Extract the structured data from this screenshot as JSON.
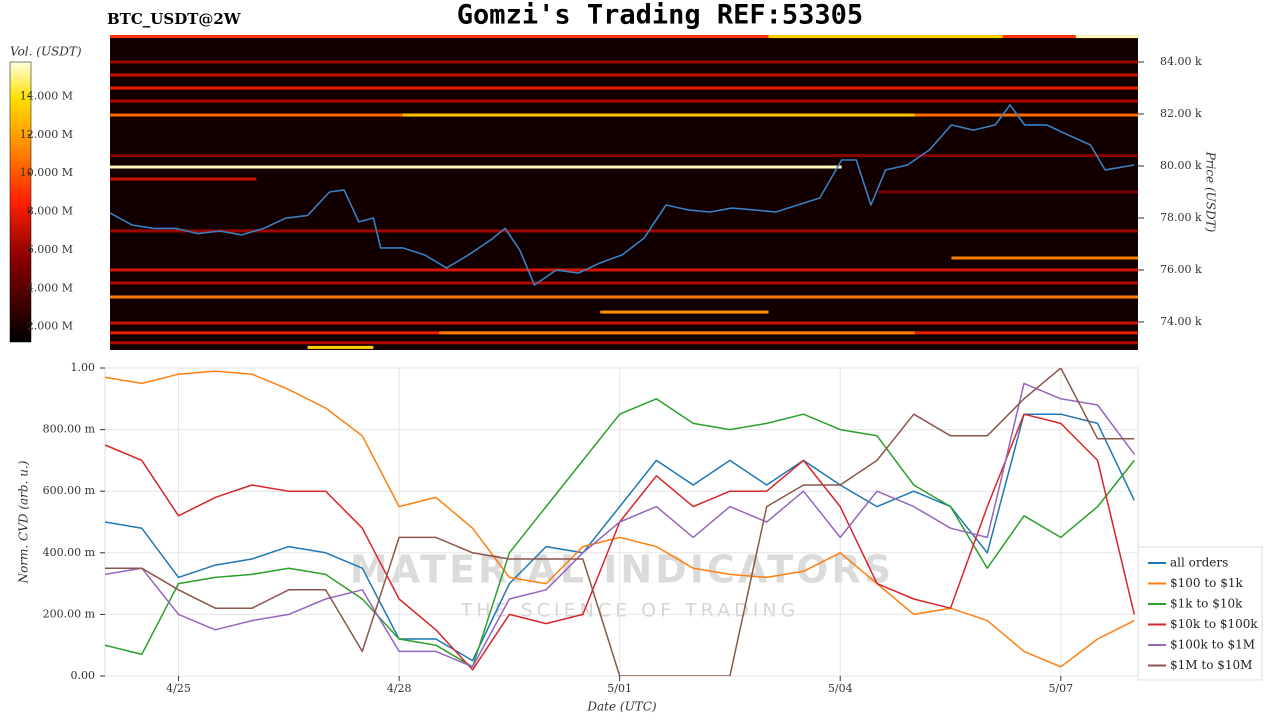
{
  "chart_data": [
    {
      "type": "heatmap",
      "title": "Gomzi's Trading REF:53305",
      "subtitle": "BTC_USDT@2W",
      "y_label": "Price (USDT)",
      "colorbar_label": "Vol. (USDT)",
      "xlim": [
        -1,
        13.05
      ],
      "ylim": [
        72920,
        85040
      ],
      "yticks": [
        {
          "value": 74000,
          "label": "74.00 k"
        },
        {
          "value": 76000,
          "label": "76.00 k"
        },
        {
          "value": 78000,
          "label": "78.00 k"
        },
        {
          "value": 80000,
          "label": "80.00 k"
        },
        {
          "value": 82000,
          "label": "82.00 k"
        },
        {
          "value": 84000,
          "label": "84.00 k"
        }
      ],
      "clim": [
        1200000,
        15800000
      ],
      "cticks": [
        {
          "value": 2000000,
          "label": "2.000 M"
        },
        {
          "value": 4000000,
          "label": "4.000 M"
        },
        {
          "value": 6000000,
          "label": "6.000 M"
        },
        {
          "value": 8000000,
          "label": "8.000 M"
        },
        {
          "value": 10000000,
          "label": "10.000 M"
        },
        {
          "value": 12000000,
          "label": "12.000 M"
        },
        {
          "value": 14000000,
          "label": "14.000 M"
        }
      ],
      "bands": {
        "prices": [
          84980,
          84980,
          84980,
          84000,
          83500,
          83000,
          82500,
          81960,
          81960,
          80400,
          79960,
          79500,
          79000,
          77500,
          76460,
          76000,
          75500,
          74960,
          74380,
          73960,
          73580,
          73580,
          73200,
          73020
        ],
        "volumes": [
          9000000,
          15500000,
          13500000,
          6000000,
          7000000,
          8000000,
          6500000,
          10500000,
          13000000,
          5500000,
          15500000,
          7000000,
          5000000,
          6000000,
          11000000,
          7500000,
          6500000,
          11000000,
          11500000,
          7000000,
          8000000,
          11000000,
          6500000,
          13500000
        ],
        "x0": [
          -1,
          12.2,
          8.0,
          -1,
          -1,
          -1,
          -1,
          -1,
          3.0,
          -1,
          -1,
          -1,
          9.5,
          -1,
          10.5,
          -1,
          -1,
          -1,
          5.7,
          -1,
          -1,
          3.5,
          -1,
          1.7
        ],
        "x1": [
          13.05,
          13.05,
          11.2,
          13.05,
          13.05,
          13.05,
          13.05,
          13.05,
          10.0,
          13.05,
          9.0,
          1.0,
          13.05,
          13.05,
          13.05,
          13.05,
          13.05,
          13.05,
          8.0,
          13.05,
          13.05,
          10.0,
          13.05,
          2.6
        ]
      },
      "x": [
        -1,
        -0.7,
        -0.4,
        -0.1,
        0.2,
        0.5,
        0.8,
        1.1,
        1.4,
        1.7,
        2.0,
        2.2,
        2.4,
        2.6,
        2.7,
        3.0,
        3.3,
        3.6,
        3.9,
        4.2,
        4.4,
        4.6,
        4.8,
        5.1,
        5.4,
        5.7,
        6.0,
        6.3,
        6.6,
        6.9,
        7.2,
        7.5,
        7.8,
        8.1,
        8.4,
        8.7,
        9.0,
        9.2,
        9.4,
        9.6,
        9.9,
        10.2,
        10.5,
        10.8,
        11.1,
        11.3,
        11.5,
        11.8,
        12.1,
        12.4,
        12.6,
        13.0
      ],
      "series": [
        {
          "color": "#3a7fc1",
          "values": [
            78190,
            77730,
            77600,
            77600,
            77400,
            77500,
            77350,
            77600,
            77990,
            78100,
            79000,
            79080,
            77850,
            78000,
            76850,
            76850,
            76580,
            76080,
            76580,
            77150,
            77600,
            76770,
            75420,
            76000,
            75880,
            76270,
            76580,
            77230,
            78500,
            78310,
            78230,
            78380,
            78310,
            78230,
            78500,
            78770,
            80230,
            80230,
            78500,
            79850,
            80040,
            80620,
            81580,
            81380,
            81580,
            82350,
            81580,
            81580,
            81190,
            80810,
            79850,
            80040
          ]
        }
      ]
    },
    {
      "type": "line",
      "x_label": "Date (UTC)",
      "y_label": "Norm. CVD (arb. u.)",
      "xlim": [
        -1,
        13.05
      ],
      "xticks": [
        {
          "value": 0,
          "label": "4/25"
        },
        {
          "value": 3,
          "label": "4/28"
        },
        {
          "value": 6,
          "label": "5/01"
        },
        {
          "value": 9,
          "label": "5/04"
        },
        {
          "value": 12,
          "label": "5/07"
        }
      ],
      "ylim": [
        0,
        1
      ],
      "yticks": [
        {
          "value": 0,
          "label": "0.00"
        },
        {
          "value": 0.2,
          "label": "200.00 m"
        },
        {
          "value": 0.4,
          "label": "400.00 m"
        },
        {
          "value": 0.6,
          "label": "600.00 m"
        },
        {
          "value": 0.8,
          "label": "800.00 m"
        },
        {
          "value": 1,
          "label": "1.00"
        }
      ],
      "grid": true,
      "legend": "lower right",
      "watermark": {
        "title": "MATERIAL INDICATORS",
        "subtitle": "THE SCIENCE OF TRADING"
      },
      "x": [
        -1,
        -0.5,
        0,
        0.5,
        1,
        1.5,
        2,
        2.5,
        3,
        3.5,
        4,
        4.5,
        5,
        5.5,
        6,
        6.5,
        7,
        7.5,
        8,
        8.5,
        9,
        9.5,
        10,
        10.5,
        11,
        11.5,
        12,
        12.5,
        13
      ],
      "series": [
        {
          "name": "all orders",
          "color": "#1f77b4",
          "values": [
            0.5,
            0.48,
            0.32,
            0.36,
            0.38,
            0.42,
            0.4,
            0.35,
            0.12,
            0.12,
            0.05,
            0.3,
            0.42,
            0.4,
            0.55,
            0.7,
            0.62,
            0.7,
            0.62,
            0.7,
            0.62,
            0.55,
            0.6,
            0.55,
            0.4,
            0.85,
            0.85,
            0.82,
            0.57
          ]
        },
        {
          "name": "$100 to $1k",
          "color": "#ff7f0e",
          "values": [
            0.97,
            0.95,
            0.98,
            0.99,
            0.98,
            0.93,
            0.87,
            0.78,
            0.55,
            0.58,
            0.48,
            0.32,
            0.3,
            0.42,
            0.45,
            0.42,
            0.35,
            0.33,
            0.32,
            0.34,
            0.4,
            0.3,
            0.2,
            0.22,
            0.18,
            0.08,
            0.03,
            0.12,
            0.18
          ]
        },
        {
          "name": "$1k to $10k",
          "color": "#2ca02c",
          "values": [
            0.1,
            0.07,
            0.3,
            0.32,
            0.33,
            0.35,
            0.33,
            0.25,
            0.12,
            0.1,
            0.03,
            0.4,
            0.55,
            0.7,
            0.85,
            0.9,
            0.82,
            0.8,
            0.82,
            0.85,
            0.8,
            0.78,
            0.62,
            0.55,
            0.35,
            0.52,
            0.45,
            0.55,
            0.7
          ]
        },
        {
          "name": "$10k to $100k",
          "color": "#d62728",
          "values": [
            0.75,
            0.7,
            0.52,
            0.58,
            0.62,
            0.6,
            0.6,
            0.48,
            0.25,
            0.15,
            0.02,
            0.2,
            0.17,
            0.2,
            0.5,
            0.65,
            0.55,
            0.6,
            0.6,
            0.7,
            0.55,
            0.3,
            0.25,
            0.22,
            0.55,
            0.85,
            0.82,
            0.7,
            0.2
          ]
        },
        {
          "name": "$100k to $1M",
          "color": "#9467bd",
          "values": [
            0.33,
            0.35,
            0.2,
            0.15,
            0.18,
            0.2,
            0.25,
            0.28,
            0.08,
            0.08,
            0.03,
            0.25,
            0.28,
            0.4,
            0.5,
            0.55,
            0.45,
            0.55,
            0.5,
            0.6,
            0.45,
            0.6,
            0.55,
            0.48,
            0.45,
            0.95,
            0.9,
            0.88,
            0.72
          ]
        },
        {
          "name": "$1M to $10M",
          "color": "#8c564b",
          "values": [
            0.35,
            0.35,
            0.28,
            0.22,
            0.22,
            0.28,
            0.28,
            0.08,
            0.45,
            0.45,
            0.4,
            0.38,
            0.38,
            0.38,
            0.0,
            0.0,
            0.0,
            0.0,
            0.55,
            0.62,
            0.62,
            0.7,
            0.85,
            0.78,
            0.78,
            0.9,
            1.0,
            0.77,
            0.77
          ]
        }
      ]
    }
  ]
}
